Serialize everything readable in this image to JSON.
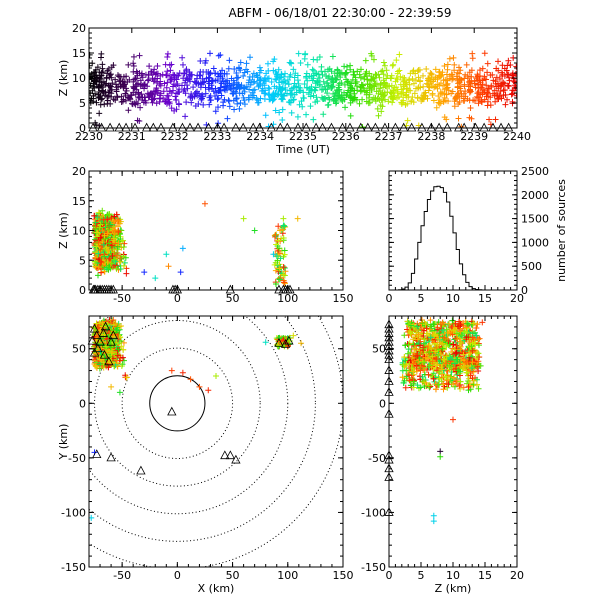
{
  "title": "ABFM - 06/18/01 22:30:00 - 22:39:59",
  "colors": {
    "axis": "#000000",
    "ring": "#000000"
  },
  "chart_data": [
    {
      "id": "time_height",
      "type": "scatter",
      "xlabel": "Time (UT)",
      "ylabel": "Z (km)",
      "xlim": [
        2230,
        2240
      ],
      "ylim": [
        0,
        20
      ],
      "xticks": [
        "2230",
        "2231",
        "2232",
        "2233",
        "2234",
        "2235",
        "2236",
        "2237",
        "2238",
        "2239",
        "2240"
      ],
      "yticks": [
        "0",
        "5",
        "10",
        "15",
        "20"
      ],
      "source_altitude_range_km": [
        0,
        15
      ],
      "color_by": "time (rainbow: black → violet → blue → cyan → green → yellow → orange → red)",
      "station_marker_z_km": 0
    },
    {
      "id": "x_z",
      "type": "scatter",
      "xlabel": "",
      "ylabel": "Z (km)",
      "xlim": [
        -80,
        150
      ],
      "ylim": [
        0,
        20
      ],
      "xticks": [
        "-50",
        "0",
        "50",
        "100",
        "150"
      ],
      "yticks": [
        "0",
        "5",
        "10",
        "15",
        "20"
      ],
      "clusters": [
        {
          "x_range_km": [
            -78,
            -25
          ],
          "z_range_km": [
            0,
            15
          ]
        },
        {
          "x_range_km": [
            85,
            100
          ],
          "z_range_km": [
            0,
            12
          ]
        }
      ],
      "stations_x_km": [
        -76,
        -74,
        -72,
        -70,
        -68,
        -66,
        -64,
        -62,
        -60,
        -58,
        -75,
        -70,
        -4,
        -2,
        0,
        48,
        92,
        96,
        98,
        100,
        102
      ]
    },
    {
      "id": "histogram",
      "type": "bar",
      "xlabel": "",
      "ylabel": "number of sources",
      "xlim": [
        0,
        20
      ],
      "ylim": [
        0,
        2500
      ],
      "xticks": [
        "0",
        "5",
        "10",
        "15",
        "20"
      ],
      "yticks": [
        "0",
        "500",
        "1000",
        "1500",
        "2000",
        "2500"
      ],
      "bin_width_km": 0.5,
      "bins_start_km": 0,
      "values": [
        0,
        0,
        0,
        5,
        20,
        60,
        150,
        350,
        650,
        1000,
        1350,
        1650,
        1900,
        2080,
        2170,
        2180,
        2150,
        2050,
        1850,
        1550,
        1200,
        850,
        550,
        320,
        160,
        70,
        30,
        10,
        5,
        0,
        0,
        0,
        0,
        0,
        0,
        0,
        0,
        0,
        0,
        0
      ]
    },
    {
      "id": "x_y",
      "type": "scatter",
      "xlabel": "X (km)",
      "ylabel": "Y (km)",
      "xlim": [
        -80,
        150
      ],
      "ylim": [
        -150,
        80
      ],
      "xticks": [
        "-50",
        "0",
        "50",
        "100",
        "150"
      ],
      "yticks": [
        "-150",
        "-100",
        "-50",
        "0",
        "50"
      ],
      "range_rings_km": [
        25,
        50,
        75,
        100,
        125,
        150
      ],
      "clusters": [
        {
          "x_range_km": [
            -78,
            -25
          ],
          "y_range_km": [
            15,
            75
          ]
        },
        {
          "x_range_km": [
            88,
            105
          ],
          "y_range_km": [
            50,
            62
          ]
        }
      ],
      "stations": [
        [
          -75,
          68
        ],
        [
          -73,
          62
        ],
        [
          -70,
          56
        ],
        [
          -67,
          64
        ],
        [
          -65,
          70
        ],
        [
          -72,
          50
        ],
        [
          -66,
          44
        ],
        [
          -60,
          56
        ],
        [
          -58,
          62
        ],
        [
          -62,
          38
        ],
        [
          -77,
          57
        ],
        [
          -75,
          46
        ],
        [
          -73,
          -47
        ],
        [
          -60,
          -50
        ],
        [
          -33,
          -62
        ],
        [
          -5,
          -8
        ],
        [
          43,
          -48
        ],
        [
          48,
          -48
        ],
        [
          53,
          -52
        ],
        [
          92,
          55
        ],
        [
          98,
          54
        ],
        [
          101,
          57
        ]
      ]
    },
    {
      "id": "z_y",
      "type": "scatter",
      "xlabel": "Z (km)",
      "ylabel": "",
      "xlim": [
        0,
        20
      ],
      "ylim": [
        -150,
        80
      ],
      "xticks": [
        "0",
        "5",
        "10",
        "15",
        "20"
      ],
      "yticks": [
        "-150",
        "-100",
        "-50",
        "0",
        "50"
      ],
      "source_z_range_km": [
        0,
        15
      ],
      "source_y_range_km": [
        12,
        75
      ],
      "outliers": [
        [
          10,
          -15
        ],
        [
          8,
          -44
        ],
        [
          8,
          -49
        ],
        [
          7,
          -103
        ],
        [
          7,
          -108
        ]
      ],
      "stations_y_km": [
        72,
        68,
        64,
        60,
        56,
        52,
        48,
        44,
        40,
        30,
        20,
        10,
        -10,
        -48,
        -52,
        -60,
        -68,
        -100
      ]
    }
  ]
}
